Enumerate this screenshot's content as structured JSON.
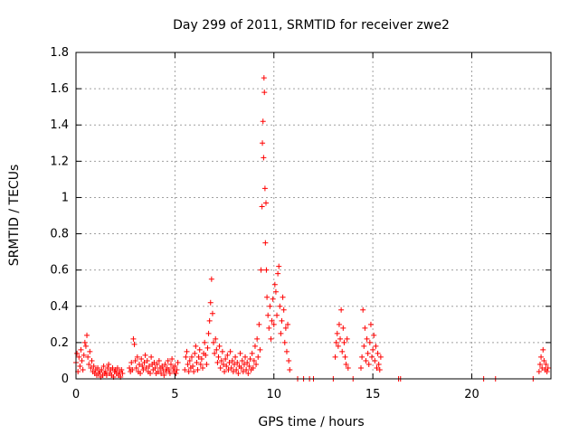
{
  "chart_data": {
    "type": "scatter",
    "title": "Day 299 of 2011, SRMTID for receiver zwe2",
    "xlabel": "GPS time / hours",
    "ylabel": "SRMTID / TECUs",
    "xlim": [
      0,
      24
    ],
    "ylim": [
      0,
      1.8
    ],
    "xticks": [
      0,
      5,
      10,
      15,
      20
    ],
    "yticks": [
      0,
      0.2,
      0.4,
      0.6,
      0.8,
      1,
      1.2,
      1.4,
      1.6,
      1.8
    ],
    "xtick_labels": [
      "0",
      "5",
      "10",
      "15",
      "20"
    ],
    "ytick_labels": [
      "0",
      "0.2",
      "0.4",
      "0.6",
      "0.8",
      "1",
      "1.2",
      "1.4",
      "1.6",
      "1.8"
    ],
    "grid": true,
    "marker": "plus",
    "color": "#ff0000",
    "series": [
      {
        "name": "SRMTID",
        "points": [
          [
            0.0,
            0.09
          ],
          [
            0.05,
            0.14
          ],
          [
            0.1,
            0.04
          ],
          [
            0.15,
            0.12
          ],
          [
            0.2,
            0.07
          ],
          [
            0.25,
            0.16
          ],
          [
            0.3,
            0.1
          ],
          [
            0.35,
            0.05
          ],
          [
            0.4,
            0.13
          ],
          [
            0.45,
            0.2
          ],
          [
            0.5,
            0.18
          ],
          [
            0.55,
            0.24
          ],
          [
            0.6,
            0.12
          ],
          [
            0.65,
            0.08
          ],
          [
            0.7,
            0.15
          ],
          [
            0.75,
            0.06
          ],
          [
            0.8,
            0.1
          ],
          [
            0.85,
            0.04
          ],
          [
            0.9,
            0.07
          ],
          [
            0.95,
            0.03
          ],
          [
            1.0,
            0.05
          ],
          [
            1.05,
            0.02
          ],
          [
            1.1,
            0.06
          ],
          [
            1.15,
            0.03
          ],
          [
            1.2,
            0.04
          ],
          [
            1.25,
            0.01
          ],
          [
            1.3,
            0.05
          ],
          [
            1.35,
            0.02
          ],
          [
            1.4,
            0.07
          ],
          [
            1.45,
            0.03
          ],
          [
            1.5,
            0.04
          ],
          [
            1.55,
            0.02
          ],
          [
            1.6,
            0.06
          ],
          [
            1.65,
            0.08
          ],
          [
            1.7,
            0.03
          ],
          [
            1.75,
            0.05
          ],
          [
            1.8,
            0.02
          ],
          [
            1.85,
            0.06
          ],
          [
            1.9,
            0.01
          ],
          [
            1.95,
            0.04
          ],
          [
            2.0,
            0.05
          ],
          [
            2.05,
            0.03
          ],
          [
            2.1,
            0.06
          ],
          [
            2.15,
            0.02
          ],
          [
            2.2,
            0.04
          ],
          [
            2.25,
            0.01
          ],
          [
            2.3,
            0.05
          ],
          [
            2.35,
            0.03
          ],
          [
            2.7,
            0.06
          ],
          [
            2.75,
            0.04
          ],
          [
            2.8,
            0.09
          ],
          [
            2.85,
            0.05
          ],
          [
            2.9,
            0.22
          ],
          [
            2.95,
            0.19
          ],
          [
            3.0,
            0.1
          ],
          [
            3.05,
            0.06
          ],
          [
            3.1,
            0.12
          ],
          [
            3.15,
            0.04
          ],
          [
            3.2,
            0.08
          ],
          [
            3.25,
            0.03
          ],
          [
            3.3,
            0.11
          ],
          [
            3.35,
            0.07
          ],
          [
            3.4,
            0.05
          ],
          [
            3.45,
            0.09
          ],
          [
            3.5,
            0.13
          ],
          [
            3.55,
            0.06
          ],
          [
            3.6,
            0.1
          ],
          [
            3.65,
            0.04
          ],
          [
            3.7,
            0.07
          ],
          [
            3.75,
            0.03
          ],
          [
            3.8,
            0.12
          ],
          [
            3.85,
            0.08
          ],
          [
            3.9,
            0.05
          ],
          [
            3.95,
            0.09
          ],
          [
            4.0,
            0.06
          ],
          [
            4.05,
            0.03
          ],
          [
            4.1,
            0.08
          ],
          [
            4.15,
            0.04
          ],
          [
            4.2,
            0.1
          ],
          [
            4.25,
            0.06
          ],
          [
            4.3,
            0.03
          ],
          [
            4.35,
            0.07
          ],
          [
            4.4,
            0.05
          ],
          [
            4.45,
            0.02
          ],
          [
            4.5,
            0.08
          ],
          [
            4.55,
            0.04
          ],
          [
            4.6,
            0.06
          ],
          [
            4.65,
            0.1
          ],
          [
            4.7,
            0.05
          ],
          [
            4.75,
            0.03
          ],
          [
            4.8,
            0.08
          ],
          [
            4.85,
            0.11
          ],
          [
            4.9,
            0.06
          ],
          [
            4.95,
            0.04
          ],
          [
            5.0,
            0.07
          ],
          [
            5.05,
            0.03
          ],
          [
            5.1,
            0.05
          ],
          [
            5.15,
            0.09
          ],
          [
            5.5,
            0.05
          ],
          [
            5.55,
            0.12
          ],
          [
            5.6,
            0.15
          ],
          [
            5.65,
            0.08
          ],
          [
            5.7,
            0.04
          ],
          [
            5.75,
            0.1
          ],
          [
            5.8,
            0.06
          ],
          [
            5.85,
            0.12
          ],
          [
            5.9,
            0.07
          ],
          [
            5.95,
            0.04
          ],
          [
            6.0,
            0.14
          ],
          [
            6.05,
            0.18
          ],
          [
            6.1,
            0.09
          ],
          [
            6.15,
            0.05
          ],
          [
            6.2,
            0.12
          ],
          [
            6.25,
            0.16
          ],
          [
            6.3,
            0.08
          ],
          [
            6.35,
            0.11
          ],
          [
            6.4,
            0.06
          ],
          [
            6.45,
            0.14
          ],
          [
            6.5,
            0.2
          ],
          [
            6.55,
            0.13
          ],
          [
            6.6,
            0.08
          ],
          [
            6.65,
            0.17
          ],
          [
            6.7,
            0.25
          ],
          [
            6.75,
            0.32
          ],
          [
            6.8,
            0.42
          ],
          [
            6.85,
            0.55
          ],
          [
            6.9,
            0.36
          ],
          [
            6.95,
            0.2
          ],
          [
            7.0,
            0.14
          ],
          [
            7.05,
            0.22
          ],
          [
            7.1,
            0.16
          ],
          [
            7.15,
            0.09
          ],
          [
            7.2,
            0.12
          ],
          [
            7.25,
            0.18
          ],
          [
            7.3,
            0.06
          ],
          [
            7.35,
            0.1
          ],
          [
            7.4,
            0.15
          ],
          [
            7.45,
            0.08
          ],
          [
            7.5,
            0.04
          ],
          [
            7.55,
            0.11
          ],
          [
            7.6,
            0.07
          ],
          [
            7.65,
            0.13
          ],
          [
            7.7,
            0.05
          ],
          [
            7.75,
            0.09
          ],
          [
            7.8,
            0.15
          ],
          [
            7.85,
            0.06
          ],
          [
            7.9,
            0.1
          ],
          [
            7.95,
            0.04
          ],
          [
            8.0,
            0.08
          ],
          [
            8.05,
            0.12
          ],
          [
            8.1,
            0.05
          ],
          [
            8.15,
            0.09
          ],
          [
            8.2,
            0.03
          ],
          [
            8.25,
            0.07
          ],
          [
            8.3,
            0.14
          ],
          [
            8.35,
            0.06
          ],
          [
            8.4,
            0.1
          ],
          [
            8.45,
            0.04
          ],
          [
            8.5,
            0.08
          ],
          [
            8.55,
            0.12
          ],
          [
            8.6,
            0.05
          ],
          [
            8.65,
            0.09
          ],
          [
            8.7,
            0.03
          ],
          [
            8.75,
            0.07
          ],
          [
            8.8,
            0.11
          ],
          [
            8.85,
            0.05
          ],
          [
            8.9,
            0.14
          ],
          [
            8.95,
            0.06
          ],
          [
            9.0,
            0.1
          ],
          [
            9.05,
            0.18
          ],
          [
            9.1,
            0.08
          ],
          [
            9.15,
            0.22
          ],
          [
            9.2,
            0.12
          ],
          [
            9.25,
            0.3
          ],
          [
            9.3,
            0.16
          ],
          [
            9.35,
            0.6
          ],
          [
            9.4,
            0.95
          ],
          [
            9.42,
            1.3
          ],
          [
            9.45,
            1.42
          ],
          [
            9.48,
            1.22
          ],
          [
            9.5,
            1.66
          ],
          [
            9.52,
            1.58
          ],
          [
            9.55,
            1.05
          ],
          [
            9.57,
            0.75
          ],
          [
            9.6,
            0.97
          ],
          [
            9.62,
            0.6
          ],
          [
            9.65,
            0.45
          ],
          [
            9.7,
            0.35
          ],
          [
            9.75,
            0.28
          ],
          [
            9.8,
            0.4
          ],
          [
            9.85,
            0.22
          ],
          [
            9.9,
            0.32
          ],
          [
            9.95,
            0.44
          ],
          [
            10.0,
            0.3
          ],
          [
            10.05,
            0.52
          ],
          [
            10.1,
            0.48
          ],
          [
            10.15,
            0.35
          ],
          [
            10.2,
            0.58
          ],
          [
            10.25,
            0.62
          ],
          [
            10.3,
            0.4
          ],
          [
            10.35,
            0.25
          ],
          [
            10.4,
            0.32
          ],
          [
            10.45,
            0.45
          ],
          [
            10.5,
            0.38
          ],
          [
            10.55,
            0.2
          ],
          [
            10.6,
            0.28
          ],
          [
            10.65,
            0.15
          ],
          [
            10.7,
            0.3
          ],
          [
            10.75,
            0.1
          ],
          [
            10.8,
            0.05
          ],
          [
            11.2,
            0.0
          ],
          [
            11.5,
            0.0
          ],
          [
            11.8,
            0.0
          ],
          [
            12.0,
            0.0
          ],
          [
            13.0,
            0.0
          ],
          [
            13.1,
            0.12
          ],
          [
            13.15,
            0.2
          ],
          [
            13.2,
            0.25
          ],
          [
            13.25,
            0.18
          ],
          [
            13.3,
            0.3
          ],
          [
            13.35,
            0.22
          ],
          [
            13.4,
            0.38
          ],
          [
            13.45,
            0.15
          ],
          [
            13.5,
            0.28
          ],
          [
            13.55,
            0.2
          ],
          [
            13.6,
            0.12
          ],
          [
            13.65,
            0.08
          ],
          [
            13.7,
            0.22
          ],
          [
            13.75,
            0.06
          ],
          [
            14.0,
            0.0
          ],
          [
            14.4,
            0.06
          ],
          [
            14.45,
            0.12
          ],
          [
            14.5,
            0.38
          ],
          [
            14.55,
            0.18
          ],
          [
            14.6,
            0.28
          ],
          [
            14.65,
            0.1
          ],
          [
            14.7,
            0.22
          ],
          [
            14.75,
            0.14
          ],
          [
            14.8,
            0.08
          ],
          [
            14.85,
            0.2
          ],
          [
            14.9,
            0.3
          ],
          [
            14.95,
            0.12
          ],
          [
            15.0,
            0.16
          ],
          [
            15.05,
            0.24
          ],
          [
            15.1,
            0.1
          ],
          [
            15.15,
            0.18
          ],
          [
            15.2,
            0.06
          ],
          [
            15.25,
            0.14
          ],
          [
            15.3,
            0.08
          ],
          [
            15.35,
            0.05
          ],
          [
            15.4,
            0.12
          ],
          [
            16.3,
            0.0
          ],
          [
            16.4,
            0.0
          ],
          [
            20.6,
            0.0
          ],
          [
            21.2,
            0.0
          ],
          [
            23.1,
            0.0
          ],
          [
            23.4,
            0.04
          ],
          [
            23.45,
            0.08
          ],
          [
            23.5,
            0.12
          ],
          [
            23.55,
            0.06
          ],
          [
            23.6,
            0.16
          ],
          [
            23.65,
            0.1
          ],
          [
            23.7,
            0.05
          ],
          [
            23.75,
            0.08
          ],
          [
            23.8,
            0.04
          ],
          [
            23.85,
            0.06
          ]
        ]
      }
    ]
  }
}
